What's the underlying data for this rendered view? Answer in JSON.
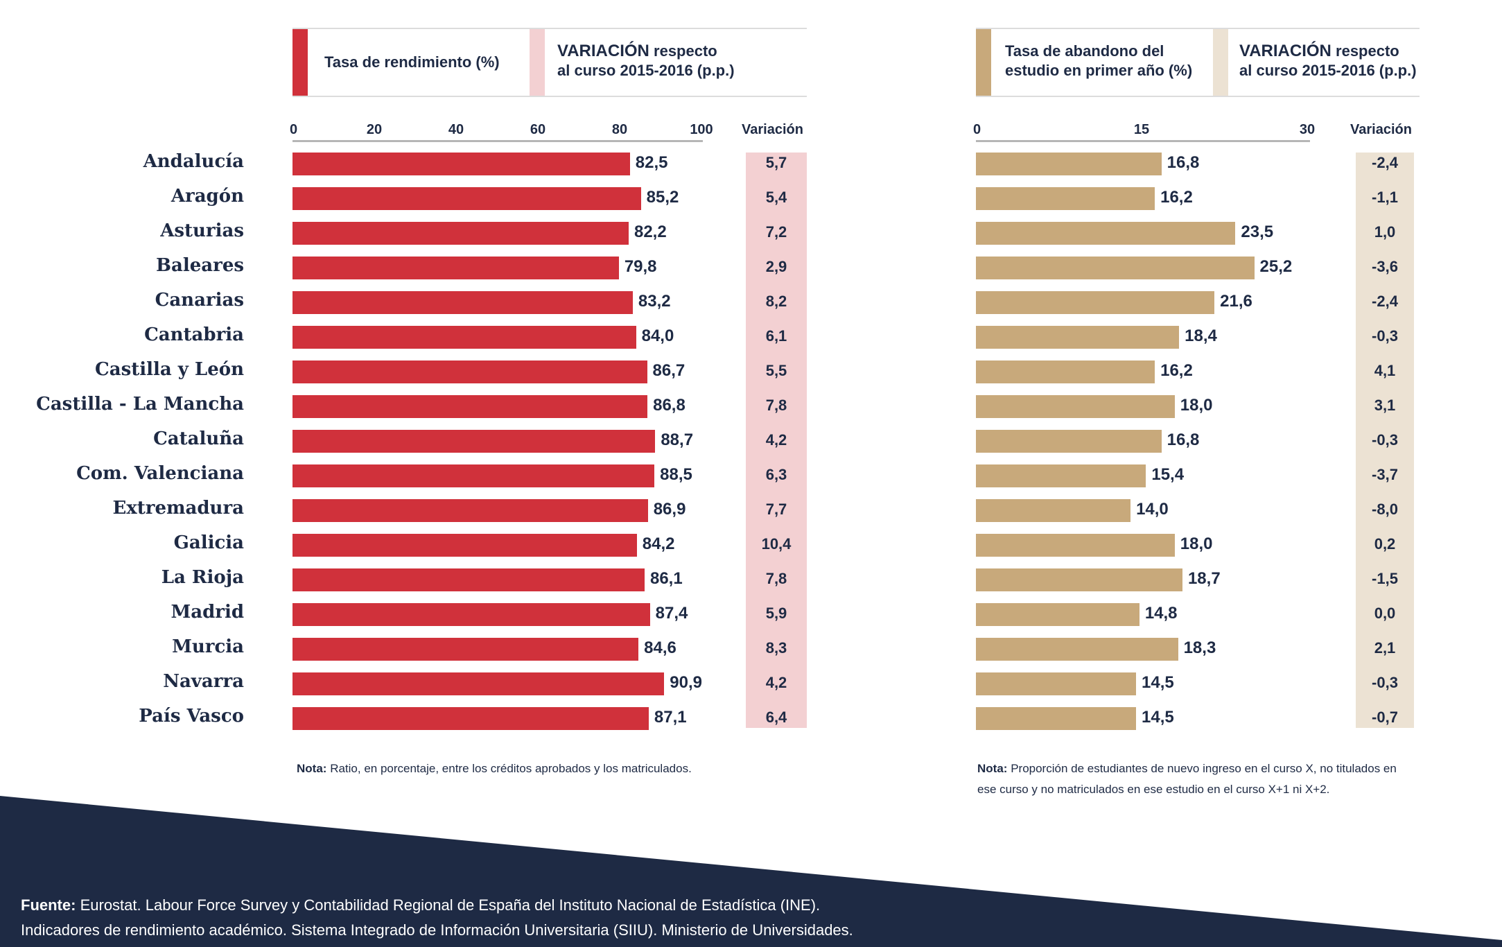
{
  "colors": {
    "left_bar": "#d0313b",
    "left_var_bg": "#f3d0d2",
    "right_bar": "#c8a97b",
    "right_var_bg": "#ece2d3",
    "text": "#1e2a44",
    "footer_bg": "#1e2a44"
  },
  "left_chart": {
    "header_label": "Tasa de rendimiento (%)",
    "variation_header_strong": "VARIACIÓN",
    "variation_header_rest_1": "respecto",
    "variation_header_line_2": "al curso 2015-2016 (p.p.)",
    "variation_col_label": "Variación",
    "note_label": "Nota:",
    "note_text": "Ratio, en porcentaje, entre los créditos aprobados y los matriculados."
  },
  "right_chart": {
    "header_label_1": "Tasa de abandono del",
    "header_label_2": "estudio en primer año (%)",
    "variation_header_strong": "VARIACIÓN",
    "variation_header_rest_1": "respecto",
    "variation_header_line_2": "al curso 2015-2016 (p.p.)",
    "variation_col_label": "Variación",
    "note_label": "Nota:",
    "note_text_1": "Proporción de estudiantes de nuevo ingreso en el curso X, no titulados en",
    "note_text_2": "ese curso y no matriculados en ese estudio en el curso X+1 ni X+2."
  },
  "footer": {
    "label": "Fuente:",
    "line1": "Eurostat. Labour Force Survey y Contabilidad Regional de España del Instituto Nacional de Estadística (INE).",
    "line2": "Indicadores de rendimiento académico. Sistema Integrado de Información Universitaria (SIIU). Ministerio de Universidades."
  },
  "chart_data": [
    {
      "type": "bar",
      "orientation": "horizontal",
      "ylabel": "Tasa de rendimiento (%)",
      "xlim": [
        0,
        100
      ],
      "ticks": [
        0,
        20,
        40,
        60,
        80,
        100
      ],
      "tick_labels": [
        "0",
        "20",
        "40",
        "60",
        "80",
        "100"
      ],
      "categories": [
        "Andalucía",
        "Aragón",
        "Asturias",
        "Baleares",
        "Canarias",
        "Cantabria",
        "Castilla y León",
        "Castilla - La Mancha",
        "Cataluña",
        "Com. Valenciana",
        "Extremadura",
        "Galicia",
        "La Rioja",
        "Madrid",
        "Murcia",
        "Navarra",
        "País Vasco"
      ],
      "values": [
        82.5,
        85.2,
        82.2,
        79.8,
        83.2,
        84.0,
        86.7,
        86.8,
        88.7,
        88.5,
        86.9,
        84.2,
        86.1,
        87.4,
        84.6,
        90.9,
        87.1
      ],
      "value_labels": [
        "82,5",
        "85,2",
        "82,2",
        "79,8",
        "83,2",
        "84,0",
        "86,7",
        "86,8",
        "88,7",
        "88,5",
        "86,9",
        "84,2",
        "86,1",
        "87,4",
        "84,6",
        "90,9",
        "87,1"
      ],
      "variation": [
        "5,7",
        "5,4",
        "7,2",
        "2,9",
        "8,2",
        "6,1",
        "5,5",
        "7,8",
        "4,2",
        "6,3",
        "7,7",
        "10,4",
        "7,8",
        "5,9",
        "8,3",
        "4,2",
        "6,4"
      ],
      "grid": false
    },
    {
      "type": "bar",
      "orientation": "horizontal",
      "ylabel": "Tasa de abandono del estudio en primer año (%)",
      "xlim": [
        0,
        30
      ],
      "ticks": [
        0,
        15,
        30
      ],
      "tick_labels": [
        "0",
        "15",
        "30"
      ],
      "categories": [
        "Andalucía",
        "Aragón",
        "Asturias",
        "Baleares",
        "Canarias",
        "Cantabria",
        "Castilla y León",
        "Castilla - La Mancha",
        "Cataluña",
        "Com. Valenciana",
        "Extremadura",
        "Galicia",
        "La Rioja",
        "Madrid",
        "Murcia",
        "Navarra",
        "País Vasco"
      ],
      "values": [
        16.8,
        16.2,
        23.5,
        25.2,
        21.6,
        18.4,
        16.2,
        18.0,
        16.8,
        15.4,
        14.0,
        18.0,
        18.7,
        14.8,
        18.3,
        14.5,
        14.5
      ],
      "value_labels": [
        "16,8",
        "16,2",
        "23,5",
        "25,2",
        "21,6",
        "18,4",
        "16,2",
        "18,0",
        "16,8",
        "15,4",
        "14,0",
        "18,0",
        "18,7",
        "14,8",
        "18,3",
        "14,5",
        "14,5"
      ],
      "variation": [
        "-2,4",
        "-1,1",
        "1,0",
        "-3,6",
        "-2,4",
        "-0,3",
        "4,1",
        "3,1",
        "-0,3",
        "-3,7",
        "-8,0",
        "0,2",
        "-1,5",
        "0,0",
        "2,1",
        "-0,3",
        "-0,7"
      ],
      "grid": false
    }
  ]
}
